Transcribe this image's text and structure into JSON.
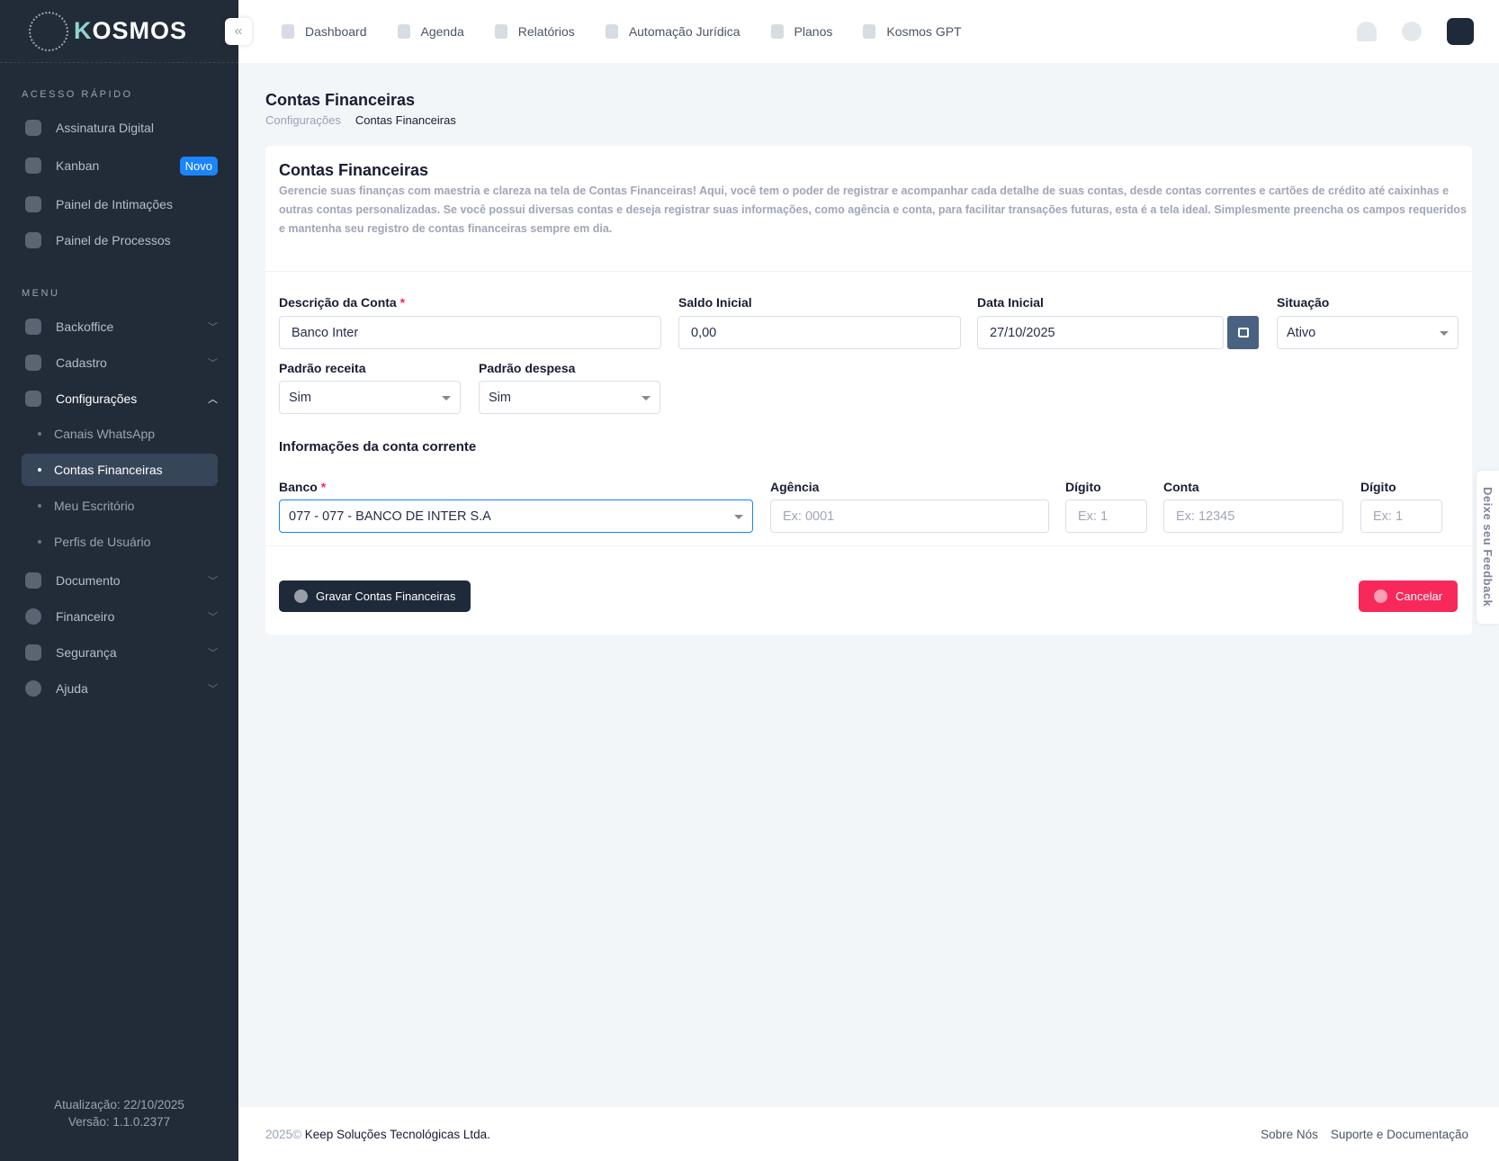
{
  "app": {
    "logo": "KOSMOS"
  },
  "topnav": [
    {
      "label": "Dashboard",
      "icon": "bar-chart-icon"
    },
    {
      "label": "Agenda",
      "icon": "calendar-icon"
    },
    {
      "label": "Relatórios",
      "icon": "document-icon"
    },
    {
      "label": "Automação Jurídica",
      "icon": "scale-icon"
    },
    {
      "label": "Planos",
      "icon": "money-bag-icon"
    },
    {
      "label": "Kosmos GPT",
      "icon": "layers-icon"
    }
  ],
  "sidebar": {
    "quick_title": "ACESSO RÁPIDO",
    "quick": [
      {
        "label": "Assinatura Digital"
      },
      {
        "label": "Kanban",
        "badge": "Novo"
      },
      {
        "label": "Painel de Intimações"
      },
      {
        "label": "Painel de Processos"
      }
    ],
    "menu_title": "MENU",
    "menu": [
      {
        "label": "Backoffice"
      },
      {
        "label": "Cadastro"
      },
      {
        "label": "Configurações"
      },
      {
        "label": "Documento"
      },
      {
        "label": "Financeiro"
      },
      {
        "label": "Segurança"
      },
      {
        "label": "Ajuda"
      }
    ],
    "sub": [
      {
        "label": "Canais WhatsApp"
      },
      {
        "label": "Contas Financeiras"
      },
      {
        "label": "Meu Escritório"
      },
      {
        "label": "Perfis de Usuário"
      }
    ],
    "update": "Atualização: 22/10/2025",
    "version": "Versão: 1.1.0.2377"
  },
  "page": {
    "title": "Contas Financeiras",
    "breadcrumb": [
      "Configurações",
      "Contas Financeiras"
    ]
  },
  "card": {
    "title": "Contas Financeiras",
    "description": "Gerencie suas finanças com maestria e clareza na tela de Contas Financeiras! Aqui, você tem o poder de registrar e acompanhar cada detalhe de suas contas, desde contas correntes e cartões de crédito até caixinhas e outras contas personalizadas. Se você possui diversas contas e deseja registrar suas informações, como agência e conta, para facilitar transações futuras, esta é a tela ideal. Simplesmente preencha os campos requeridos e mantenha seu registro de contas financeiras sempre em dia.",
    "fields": {
      "descricao": {
        "label": "Descrição da Conta",
        "value": "Banco Inter"
      },
      "saldo": {
        "label": "Saldo Inicial",
        "value": "0,00"
      },
      "data": {
        "label": "Data Inicial",
        "value": "27/10/2025"
      },
      "situacao": {
        "label": "Situação",
        "value": "Ativo"
      },
      "receita": {
        "label": "Padrão receita",
        "value": "Sim"
      },
      "despesa": {
        "label": "Padrão despesa",
        "value": "Sim"
      }
    },
    "section": "Informações da conta corrente",
    "bank": {
      "banco": {
        "label": "Banco",
        "value": "077 - 077 - BANCO DE INTER S.A"
      },
      "agencia": {
        "label": "Agência",
        "placeholder": "Ex: 0001"
      },
      "digito1": {
        "label": "Dígito",
        "placeholder": "Ex: 1"
      },
      "conta": {
        "label": "Conta",
        "placeholder": "Ex: 12345"
      },
      "digito2": {
        "label": "Dígito",
        "placeholder": "Ex: 1"
      }
    },
    "save": "Gravar Contas Financeiras",
    "cancel": "Cancelar"
  },
  "feedback": "Deixe seu Feedback",
  "footer": {
    "year": "2025©",
    "company": "Keep Soluções Tecnológicas Ltda.",
    "links": [
      "Sobre Nós",
      "Suporte e Documentação"
    ]
  },
  "colors": {
    "sidebar": "#222b38",
    "primary": "#1b84ff",
    "save": "#1e2a3a",
    "cancel": "#f8285a"
  }
}
